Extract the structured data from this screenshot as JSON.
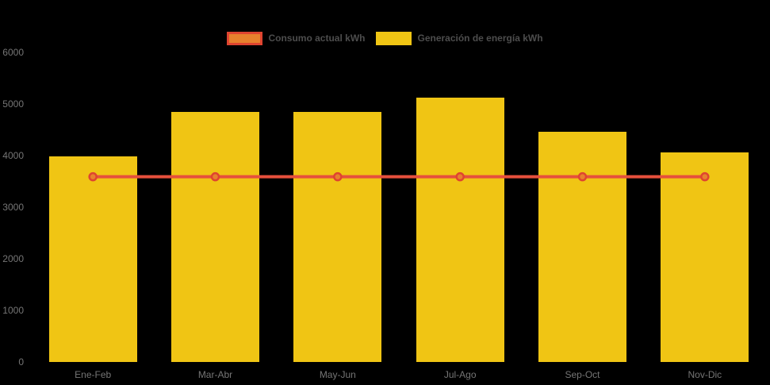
{
  "background": "#000000",
  "axis": {
    "label_color": "#757575"
  },
  "legend": {
    "text_color": "#4D4D4D",
    "items": [
      {
        "label": "Consumo actual kWh",
        "swatch_fill": "#E8812D",
        "swatch_border": "#DF4430"
      },
      {
        "label": "Generación de energía kWh",
        "swatch_fill": "#F0C514",
        "swatch_border": "#F0C514"
      }
    ]
  },
  "chart_data": {
    "type": "bar",
    "title": "",
    "xlabel": "",
    "ylabel": "",
    "categories": [
      "Ene-Feb",
      "Mar-Abr",
      "May-Jun",
      "Jul-Ago",
      "Sep-Oct",
      "Nov-Dic"
    ],
    "series": [
      {
        "name": "Consumo actual kWh",
        "type": "line",
        "values": [
          3590,
          3590,
          3590,
          3590,
          3590,
          3590
        ],
        "line_color": "#E5503C",
        "line_width": 4,
        "marker_fill": "#E8812D",
        "marker_border": "#DF4430",
        "marker_radius": 4.5
      },
      {
        "name": "Generación de energía kWh",
        "type": "bar",
        "values": [
          3990,
          4850,
          4850,
          5120,
          4460,
          4060
        ],
        "color": "#F0C514"
      }
    ],
    "ylim": [
      0,
      6000
    ],
    "y_ticks": [
      0,
      1000,
      2000,
      3000,
      4000,
      5000,
      6000
    ],
    "grid": false,
    "legend_position": "top-center"
  }
}
